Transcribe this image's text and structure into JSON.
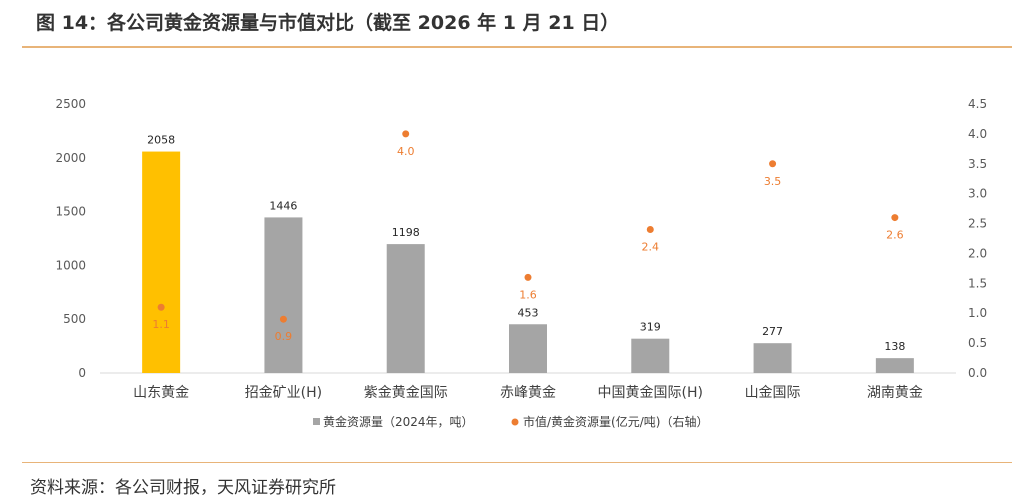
{
  "figure": {
    "title": "图 14：各公司黄金资源量与市值对比（截至 2026 年 1 月 21 日）",
    "source": "资料来源：各公司财报，天风证券研究所"
  },
  "colors": {
    "bar_default": "#a5a5a5",
    "bar_highlight": "#ffc000",
    "dot": "#ed7d31",
    "dot_label": "#ed7d31",
    "rule": "#e8b479",
    "axis": "#d9d9d9"
  },
  "chart_data": {
    "type": "bar",
    "categories": [
      "山东黄金",
      "招金矿业(H)",
      "紫金黄金国际",
      "赤峰黄金",
      "中国黄金国际(H)",
      "山金国际",
      "湖南黄金"
    ],
    "series": [
      {
        "name": "黄金资源量（2024年，吨）",
        "type": "bar",
        "axis": "left",
        "values": [
          2058,
          1446,
          1198,
          453,
          319,
          277,
          138
        ],
        "labels": [
          "2058",
          "1446",
          "1198",
          "453",
          "319",
          "277",
          "138"
        ],
        "highlight_index": 0
      },
      {
        "name": "市值/黄金资源量(亿元/吨)（右轴）",
        "type": "scatter",
        "axis": "right",
        "values": [
          1.1,
          0.9,
          4.0,
          1.6,
          2.4,
          3.5,
          2.6
        ],
        "labels": [
          "1.1",
          "0.9",
          "4.0",
          "1.6",
          "2.4",
          "3.5",
          "2.6"
        ]
      }
    ],
    "y_left": {
      "range": [
        0,
        2500
      ],
      "ticks": [
        0,
        500,
        1000,
        1500,
        2000,
        2500
      ],
      "tick_labels": [
        "0",
        "500",
        "1000",
        "1500",
        "2000",
        "2500"
      ]
    },
    "y_right": {
      "range": [
        0,
        4.5
      ],
      "ticks": [
        0,
        0.5,
        1,
        1.5,
        2,
        2.5,
        3,
        3.5,
        4,
        4.5
      ],
      "tick_labels": [
        "0.0",
        "0.5",
        "1.0",
        "1.5",
        "2.0",
        "2.5",
        "3.0",
        "3.5",
        "4.0",
        "4.5"
      ]
    },
    "legend": {
      "position": "bottom",
      "items": [
        "黄金资源量（2024年，吨）",
        "市值/黄金资源量(亿元/吨)（右轴）"
      ]
    },
    "grid": false
  }
}
